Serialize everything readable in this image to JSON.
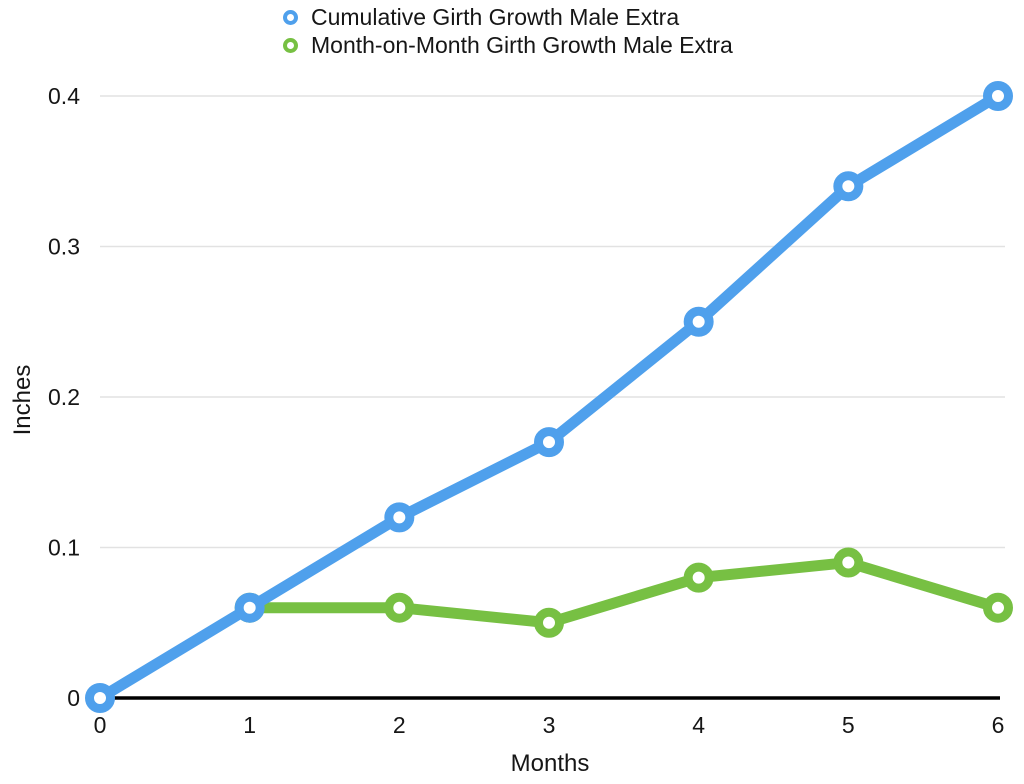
{
  "chart_data": {
    "type": "line",
    "x": [
      0,
      1,
      2,
      3,
      4,
      5,
      6
    ],
    "series": [
      {
        "name": "Cumulative Girth Growth Male Extra",
        "color": "#4FA0EC",
        "values": [
          0,
          0.06,
          0.12,
          0.17,
          0.25,
          0.34,
          0.4
        ]
      },
      {
        "name": "Month-on-Month Girth Growth Male Extra",
        "color": "#77C043",
        "values": [
          null,
          0.06,
          0.06,
          0.05,
          0.08,
          0.09,
          0.06
        ]
      }
    ],
    "xlabel": "Months",
    "ylabel": "Inches",
    "xticks": [
      0,
      1,
      2,
      3,
      4,
      5,
      6
    ],
    "yticks": [
      0,
      0.1,
      0.2,
      0.3,
      0.4
    ],
    "xlim": [
      0,
      6
    ],
    "ylim": [
      0,
      0.4
    ],
    "grid": "horizontal",
    "legend_position": "top",
    "marker_style": "open-circle",
    "colors": {
      "gridline": "#E2E2E2",
      "axis": "#000000",
      "text": "#161616",
      "background": "#FFFFFF"
    }
  }
}
